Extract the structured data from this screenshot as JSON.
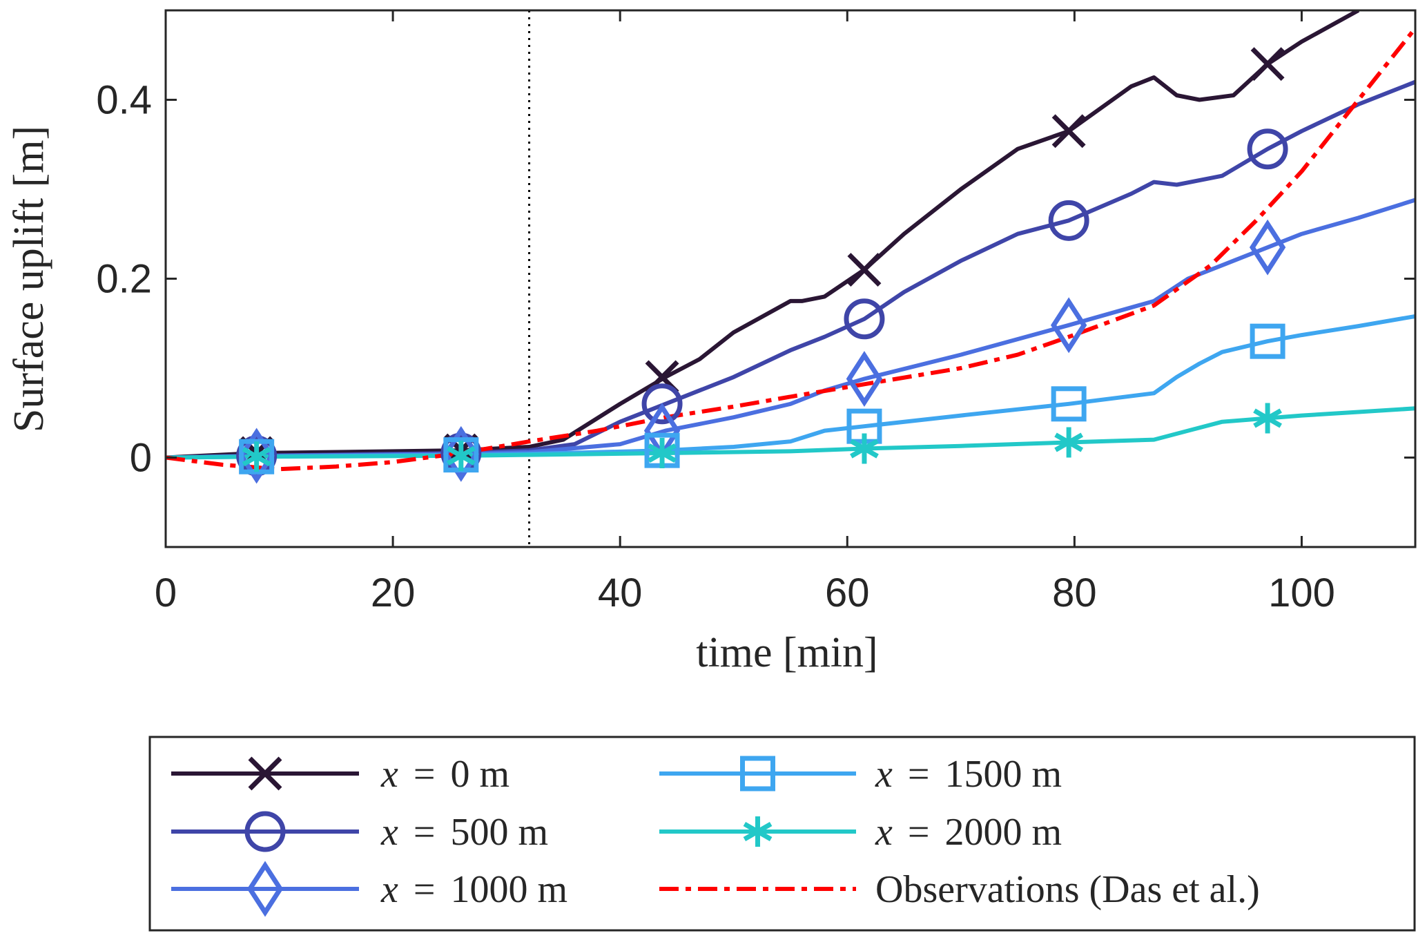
{
  "chart_data": {
    "type": "line",
    "title": "",
    "xlabel": "time [min]",
    "ylabel": "Surface uplift [m]",
    "xlim": [
      0,
      110
    ],
    "ylim": [
      -0.1,
      0.5
    ],
    "xticks": [
      0,
      20,
      40,
      60,
      80,
      100
    ],
    "xtick_labels": [
      "0",
      "20",
      "40",
      "60",
      "80",
      "100"
    ],
    "yticks": [
      0,
      0.2,
      0.4
    ],
    "ytick_labels": [
      "0",
      "0.2",
      "0.4"
    ],
    "grid": false,
    "vline": {
      "x": 32,
      "style": "dotted"
    },
    "legend_position": "below",
    "series": [
      {
        "name": "x = 0 m",
        "label_var": "x",
        "label_eq": "=",
        "label_val": "0 m",
        "color": "#2a1634",
        "marker": "x",
        "dash": "solid",
        "x": [
          0,
          8,
          26,
          32,
          35,
          40,
          44,
          47,
          50,
          55,
          56,
          58,
          61.5,
          65,
          70,
          75,
          79.5,
          85,
          87,
          89,
          91,
          94,
          97,
          100,
          105
        ],
        "y": [
          0,
          0.005,
          0.008,
          0.012,
          0.02,
          0.06,
          0.09,
          0.11,
          0.14,
          0.175,
          0.175,
          0.18,
          0.21,
          0.25,
          0.3,
          0.345,
          0.365,
          0.415,
          0.425,
          0.405,
          0.4,
          0.405,
          0.44,
          0.465,
          0.5
        ],
        "marker_x": [
          8,
          26,
          43.7,
          61.5,
          79.5,
          97
        ],
        "marker_y": [
          0.005,
          0.008,
          0.09,
          0.21,
          0.365,
          0.44
        ]
      },
      {
        "name": "x = 500 m",
        "label_var": "x",
        "label_eq": "=",
        "label_val": "500 m",
        "color": "#3f45a8",
        "marker": "o",
        "dash": "solid",
        "x": [
          0,
          8,
          26,
          32,
          36,
          40,
          44,
          50,
          55,
          58,
          61.5,
          65,
          70,
          75,
          79.5,
          85,
          87,
          89,
          93,
          97,
          100,
          105,
          110
        ],
        "y": [
          0,
          0.002,
          0.005,
          0.008,
          0.015,
          0.04,
          0.06,
          0.09,
          0.12,
          0.135,
          0.155,
          0.185,
          0.22,
          0.25,
          0.265,
          0.295,
          0.308,
          0.305,
          0.315,
          0.345,
          0.365,
          0.395,
          0.42
        ],
        "marker_x": [
          8,
          26,
          43.7,
          61.5,
          79.5,
          97
        ],
        "marker_y": [
          0.002,
          0.005,
          0.06,
          0.155,
          0.265,
          0.345
        ]
      },
      {
        "name": "x = 1000 m",
        "label_var": "x",
        "label_eq": "=",
        "label_val": "1000 m",
        "color": "#4b6fe0",
        "marker": "diamond",
        "dash": "solid",
        "x": [
          0,
          8,
          26,
          32,
          40,
          44,
          50,
          55,
          58,
          61.5,
          70,
          79.5,
          87,
          90,
          95,
          97,
          100,
          105,
          110
        ],
        "y": [
          0,
          0.002,
          0.004,
          0.006,
          0.015,
          0.03,
          0.045,
          0.06,
          0.075,
          0.088,
          0.115,
          0.148,
          0.175,
          0.2,
          0.225,
          0.235,
          0.25,
          0.268,
          0.288
        ],
        "marker_x": [
          8,
          26,
          43.7,
          61.5,
          79.5,
          97
        ],
        "marker_y": [
          0.002,
          0.004,
          0.03,
          0.088,
          0.148,
          0.235
        ]
      },
      {
        "name": "x = 1500 m",
        "label_var": "x",
        "label_eq": "=",
        "label_val": "1500 m",
        "color": "#3ea6f0",
        "marker": "square",
        "dash": "solid",
        "x": [
          0,
          8,
          26,
          32,
          44,
          50,
          55,
          58,
          61.5,
          70,
          79.5,
          87,
          89,
          91,
          93,
          97,
          100,
          105,
          110
        ],
        "y": [
          0,
          0.001,
          0.003,
          0.004,
          0.008,
          0.012,
          0.018,
          0.03,
          0.035,
          0.047,
          0.06,
          0.072,
          0.09,
          0.105,
          0.118,
          0.13,
          0.137,
          0.147,
          0.158
        ],
        "marker_x": [
          8,
          26,
          43.7,
          61.5,
          79.5,
          97
        ],
        "marker_y": [
          0.001,
          0.003,
          0.008,
          0.035,
          0.06,
          0.13
        ]
      },
      {
        "name": "x = 2000 m",
        "label_var": "x",
        "label_eq": "=",
        "label_val": "2000 m",
        "color": "#22c8c8",
        "marker": "asterisk",
        "dash": "solid",
        "x": [
          0,
          8,
          26,
          32,
          44,
          55,
          61.5,
          70,
          79.5,
          87,
          90,
          93,
          97,
          100,
          105,
          110
        ],
        "y": [
          0,
          0.001,
          0.002,
          0.003,
          0.005,
          0.007,
          0.01,
          0.013,
          0.017,
          0.02,
          0.03,
          0.04,
          0.044,
          0.047,
          0.051,
          0.055
        ],
        "marker_x": [
          8,
          26,
          43.7,
          61.5,
          79.5,
          97
        ],
        "marker_y": [
          0.001,
          0.002,
          0.005,
          0.01,
          0.017,
          0.044
        ]
      },
      {
        "name": "Observations (Das et al.)",
        "label_plain": "Observations (Das et al.)",
        "color": "#ff0000",
        "marker": "none",
        "dash": "dashdot",
        "x": [
          0,
          5,
          10,
          15,
          20,
          26,
          32,
          38,
          44,
          50,
          55,
          61.5,
          70,
          75,
          79.5,
          87,
          92,
          96,
          100,
          105,
          110
        ],
        "y": [
          0,
          -0.008,
          -0.013,
          -0.01,
          -0.005,
          0.005,
          0.018,
          0.03,
          0.045,
          0.057,
          0.068,
          0.082,
          0.1,
          0.115,
          0.135,
          0.17,
          0.215,
          0.265,
          0.32,
          0.4,
          0.48
        ]
      }
    ]
  }
}
